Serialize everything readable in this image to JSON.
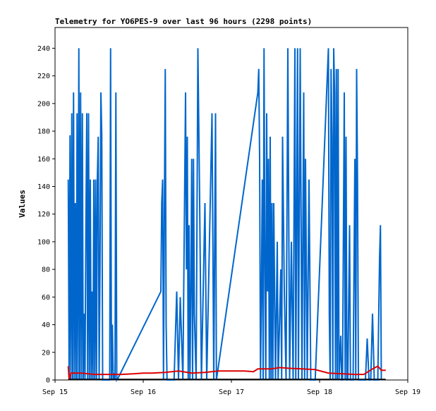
{
  "chart_data": {
    "type": "line",
    "title": "Telemetry for YO6PES-9 over last 96 hours (2298 points)",
    "xlabel": "",
    "ylabel": "Values",
    "x_ticks": [
      "Sep 15",
      "Sep 16",
      "Sep 17",
      "Sep 18",
      "Sep 19"
    ],
    "xlim": [
      "Sep 15",
      "Sep 19"
    ],
    "ylim": [
      0,
      255
    ],
    "y_ticks": [
      0,
      20,
      40,
      60,
      80,
      100,
      120,
      140,
      160,
      180,
      200,
      220,
      240
    ],
    "grid": false,
    "legend": "none",
    "colors": {
      "series_blue": "#0066cc",
      "series_red": "#dd0000",
      "series_black": "#000000"
    },
    "series": [
      {
        "color": "#0066cc",
        "points": [
          [
            0.15,
            145
          ],
          [
            0.16,
            0
          ],
          [
            0.17,
            177
          ],
          [
            0.18,
            0
          ],
          [
            0.19,
            193
          ],
          [
            0.2,
            0
          ],
          [
            0.21,
            208
          ],
          [
            0.22,
            0
          ],
          [
            0.23,
            128
          ],
          [
            0.24,
            0
          ],
          [
            0.25,
            193
          ],
          [
            0.26,
            0
          ],
          [
            0.27,
            240
          ],
          [
            0.28,
            0
          ],
          [
            0.29,
            208
          ],
          [
            0.3,
            0
          ],
          [
            0.31,
            193
          ],
          [
            0.32,
            0
          ],
          [
            0.33,
            48
          ],
          [
            0.34,
            0
          ],
          [
            0.35,
            112
          ],
          [
            0.36,
            193
          ],
          [
            0.37,
            0
          ],
          [
            0.38,
            193
          ],
          [
            0.39,
            0
          ],
          [
            0.4,
            145
          ],
          [
            0.41,
            0
          ],
          [
            0.42,
            64
          ],
          [
            0.43,
            0
          ],
          [
            0.44,
            145
          ],
          [
            0.45,
            0
          ],
          [
            0.46,
            145
          ],
          [
            0.47,
            0
          ],
          [
            0.48,
            145
          ],
          [
            0.49,
            176
          ],
          [
            0.5,
            0
          ],
          [
            0.51,
            80
          ],
          [
            0.52,
            208
          ],
          [
            0.53,
            177
          ],
          [
            0.54,
            0
          ],
          [
            0.62,
            0
          ],
          [
            0.63,
            240
          ],
          [
            0.64,
            0
          ],
          [
            0.65,
            40
          ],
          [
            0.66,
            0
          ],
          [
            0.67,
            5
          ],
          [
            0.68,
            0
          ],
          [
            0.69,
            208
          ],
          [
            0.7,
            0
          ],
          [
            0.72,
            2
          ],
          [
            1.2,
            64
          ],
          [
            1.21,
            128
          ],
          [
            1.22,
            145
          ],
          [
            1.23,
            0
          ],
          [
            1.24,
            120
          ],
          [
            1.25,
            225
          ],
          [
            1.26,
            40
          ],
          [
            1.27,
            0
          ],
          [
            1.35,
            0
          ],
          [
            1.38,
            64
          ],
          [
            1.4,
            0
          ],
          [
            1.42,
            60
          ],
          [
            1.45,
            0
          ],
          [
            1.48,
            208
          ],
          [
            1.49,
            80
          ],
          [
            1.5,
            176
          ],
          [
            1.51,
            0
          ],
          [
            1.52,
            112
          ],
          [
            1.53,
            0
          ],
          [
            1.54,
            64
          ],
          [
            1.55,
            160
          ],
          [
            1.56,
            0
          ],
          [
            1.57,
            160
          ],
          [
            1.58,
            48
          ],
          [
            1.6,
            0
          ],
          [
            1.62,
            240
          ],
          [
            1.64,
            128
          ],
          [
            1.66,
            0
          ],
          [
            1.7,
            128
          ],
          [
            1.72,
            0
          ],
          [
            1.78,
            193
          ],
          [
            1.8,
            0
          ],
          [
            1.82,
            193
          ],
          [
            1.83,
            0
          ],
          [
            2.3,
            208
          ],
          [
            2.31,
            225
          ],
          [
            2.32,
            160
          ],
          [
            2.33,
            0
          ],
          [
            2.34,
            60
          ],
          [
            2.35,
            145
          ],
          [
            2.36,
            0
          ],
          [
            2.37,
            240
          ],
          [
            2.38,
            80
          ],
          [
            2.39,
            0
          ],
          [
            2.4,
            193
          ],
          [
            2.41,
            64
          ],
          [
            2.42,
            160
          ],
          [
            2.43,
            0
          ],
          [
            2.44,
            176
          ],
          [
            2.45,
            0
          ],
          [
            2.46,
            128
          ],
          [
            2.47,
            0
          ],
          [
            2.48,
            128
          ],
          [
            2.5,
            0
          ],
          [
            2.52,
            100
          ],
          [
            2.53,
            0
          ],
          [
            2.56,
            80
          ],
          [
            2.57,
            0
          ],
          [
            2.58,
            176
          ],
          [
            2.6,
            64
          ],
          [
            2.62,
            0
          ],
          [
            2.64,
            240
          ],
          [
            2.66,
            0
          ],
          [
            2.68,
            100
          ],
          [
            2.7,
            0
          ],
          [
            2.72,
            240
          ],
          [
            2.73,
            0
          ],
          [
            2.75,
            240
          ],
          [
            2.76,
            0
          ],
          [
            2.78,
            240
          ],
          [
            2.8,
            0
          ],
          [
            2.82,
            208
          ],
          [
            2.83,
            0
          ],
          [
            2.84,
            160
          ],
          [
            2.86,
            0
          ],
          [
            2.88,
            145
          ],
          [
            2.9,
            0
          ],
          [
            2.95,
            0
          ],
          [
            3.1,
            240
          ],
          [
            3.11,
            48
          ],
          [
            3.12,
            0
          ],
          [
            3.13,
            225
          ],
          [
            3.14,
            176
          ],
          [
            3.15,
            0
          ],
          [
            3.16,
            240
          ],
          [
            3.17,
            208
          ],
          [
            3.18,
            0
          ],
          [
            3.19,
            225
          ],
          [
            3.2,
            0
          ],
          [
            3.21,
            225
          ],
          [
            3.22,
            0
          ],
          [
            3.24,
            32
          ],
          [
            3.25,
            0
          ],
          [
            3.26,
            0
          ],
          [
            3.28,
            208
          ],
          [
            3.29,
            0
          ],
          [
            3.3,
            176
          ],
          [
            3.31,
            0
          ],
          [
            3.32,
            0
          ],
          [
            3.34,
            112
          ],
          [
            3.35,
            0
          ],
          [
            3.37,
            0
          ],
          [
            3.38,
            0
          ],
          [
            3.4,
            160
          ],
          [
            3.41,
            0
          ],
          [
            3.42,
            225
          ],
          [
            3.43,
            145
          ],
          [
            3.44,
            0
          ],
          [
            3.48,
            0
          ],
          [
            3.52,
            0
          ],
          [
            3.54,
            30
          ],
          [
            3.56,
            0
          ],
          [
            3.58,
            0
          ],
          [
            3.6,
            48
          ],
          [
            3.62,
            0
          ],
          [
            3.66,
            0
          ],
          [
            3.68,
            88
          ],
          [
            3.69,
            112
          ],
          [
            3.7,
            0
          ]
        ]
      },
      {
        "color": "#dd0000",
        "points": [
          [
            0.15,
            10
          ],
          [
            0.16,
            0
          ],
          [
            0.18,
            5
          ],
          [
            0.3,
            5
          ],
          [
            0.45,
            4
          ],
          [
            0.6,
            4
          ],
          [
            0.75,
            4
          ],
          [
            0.9,
            4.5
          ],
          [
            1.0,
            5
          ],
          [
            1.1,
            5
          ],
          [
            1.25,
            5.5
          ],
          [
            1.4,
            6.5
          ],
          [
            1.55,
            5
          ],
          [
            1.7,
            5.5
          ],
          [
            1.85,
            6.5
          ],
          [
            2.0,
            6.5
          ],
          [
            2.15,
            6.5
          ],
          [
            2.25,
            6
          ],
          [
            2.3,
            8
          ],
          [
            2.45,
            8
          ],
          [
            2.55,
            9
          ],
          [
            2.65,
            8.5
          ],
          [
            2.8,
            8
          ],
          [
            2.95,
            7.5
          ],
          [
            3.1,
            5
          ],
          [
            3.25,
            4.5
          ],
          [
            3.4,
            4
          ],
          [
            3.5,
            4
          ],
          [
            3.6,
            8
          ],
          [
            3.66,
            10
          ],
          [
            3.7,
            7
          ],
          [
            3.75,
            7
          ]
        ]
      }
    ]
  }
}
